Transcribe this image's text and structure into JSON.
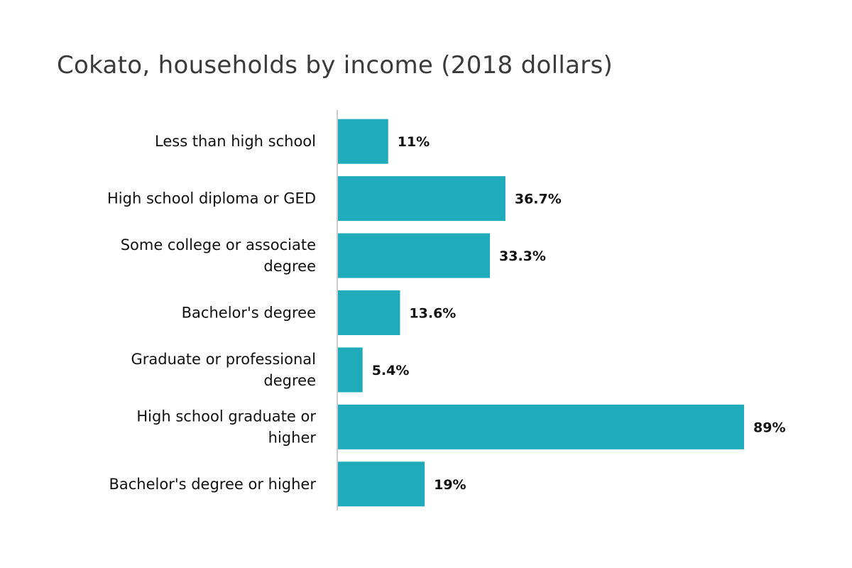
{
  "chart_data": {
    "type": "bar",
    "orientation": "horizontal",
    "title": "Cokato, households by income (2018 dollars)",
    "categories": [
      "Less than high school",
      "High school diploma or GED",
      "Some college or associate degree",
      "Bachelor's degree",
      "Graduate or professional degree",
      "High school graduate or higher",
      "Bachelor's degree or higher"
    ],
    "values": [
      11,
      36.7,
      33.3,
      13.6,
      5.4,
      89,
      19
    ],
    "value_labels": [
      "11%",
      "36.7%",
      "33.3%",
      "13.6%",
      "5.4%",
      "89%",
      "19%"
    ],
    "xlim": [
      0,
      89
    ],
    "bar_color": "#20abbb",
    "axis_color": "#cccccc",
    "grid": false,
    "legend": "none"
  }
}
